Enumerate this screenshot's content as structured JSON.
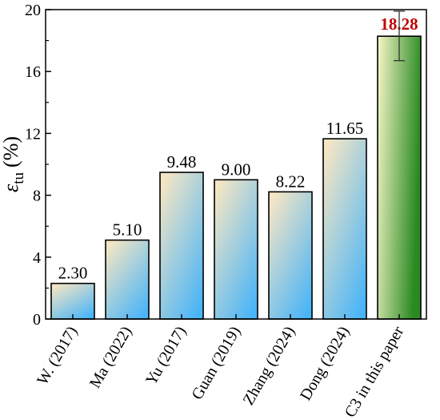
{
  "chart_data": {
    "type": "bar",
    "title": "",
    "xlabel": "",
    "ylabel_symbol": "ε",
    "ylabel_subscript": "tu",
    "ylabel_unit": "(%)",
    "ylim": [
      0,
      20
    ],
    "yticks": [
      0,
      4,
      8,
      12,
      16,
      20
    ],
    "categories": [
      "W. (2017)",
      "Ma (2022)",
      "Yu (2017)",
      "Guan (2019)",
      "Zhang (2024)",
      "Dong (2024)",
      "C3 in this paper"
    ],
    "values": [
      2.3,
      5.1,
      9.48,
      9.0,
      8.22,
      11.65,
      18.28
    ],
    "value_labels": [
      "2.30",
      "5.10",
      "9.48",
      "9.00",
      "8.22",
      "11.65",
      "18.28"
    ],
    "error_bar": {
      "category": "C3 in this paper",
      "lower": 16.7,
      "upper": 19.9
    },
    "grid": false,
    "colors": {
      "bar_gradient_top": "#f5e6c4",
      "bar_gradient_bottom": "#48b4f8",
      "highlight_gradient_left": "#f6f6c8",
      "highlight_gradient_right": "#2a8a22",
      "highlight_label": "#c00000",
      "axis": "#000000"
    }
  }
}
